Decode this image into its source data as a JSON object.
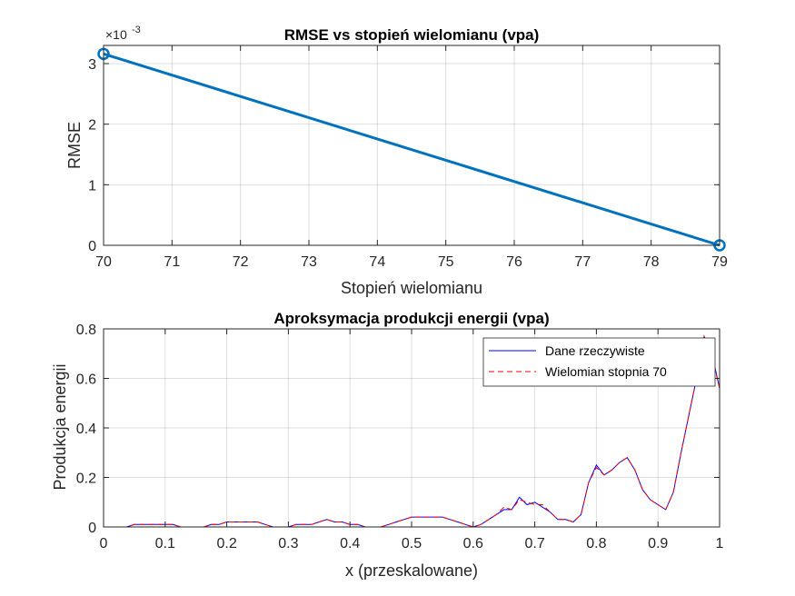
{
  "chart_data": [
    {
      "type": "line",
      "title": "RMSE vs stopień wielomianu (vpa)",
      "xlabel": "Stopień wielomianu",
      "ylabel": "RMSE",
      "y_exponent": "-3",
      "xlim": [
        70,
        79
      ],
      "ylim": [
        0,
        0.0033
      ],
      "xticks": [
        70,
        71,
        72,
        73,
        74,
        75,
        76,
        77,
        78,
        79
      ],
      "yticks": [
        0,
        0.001,
        0.002,
        0.003
      ],
      "ytick_labels": [
        "0",
        "1",
        "2",
        "3"
      ],
      "grid": true,
      "series": [
        {
          "x": [
            70,
            79
          ],
          "y": [
            0.00316,
            0.0
          ],
          "marker": "o",
          "color": "#0072BD"
        }
      ]
    },
    {
      "type": "line",
      "title": "Aproksymacja produkcji energii (vpa)",
      "xlabel": "x (przeskalowane)",
      "ylabel": "Produkcja energii",
      "xlim": [
        0,
        1
      ],
      "ylim": [
        0,
        0.8
      ],
      "xticks": [
        0,
        0.1,
        0.2,
        0.3,
        0.4,
        0.5,
        0.6,
        0.7,
        0.8,
        0.9,
        1
      ],
      "xtick_labels": [
        "0",
        "0.1",
        "0.2",
        "0.3",
        "0.4",
        "0.5",
        "0.6",
        "0.7",
        "0.8",
        "0.9",
        "1"
      ],
      "yticks": [
        0,
        0.2,
        0.4,
        0.6,
        0.8
      ],
      "ytick_labels": [
        "0",
        "0.2",
        "0.4",
        "0.6",
        "0.8"
      ],
      "grid": true,
      "legend_position": "top-right",
      "x": [
        0,
        0.0125,
        0.025,
        0.0375,
        0.05,
        0.0625,
        0.075,
        0.0875,
        0.1,
        0.1125,
        0.125,
        0.1375,
        0.15,
        0.1625,
        0.175,
        0.1875,
        0.2,
        0.2125,
        0.225,
        0.2375,
        0.25,
        0.2625,
        0.275,
        0.2875,
        0.3,
        0.3125,
        0.325,
        0.3375,
        0.35,
        0.3625,
        0.375,
        0.3875,
        0.4,
        0.4125,
        0.425,
        0.4375,
        0.45,
        0.4625,
        0.475,
        0.4875,
        0.5,
        0.5125,
        0.525,
        0.5375,
        0.55,
        0.5625,
        0.575,
        0.5875,
        0.6,
        0.6125,
        0.625,
        0.6375,
        0.65,
        0.6625,
        0.675,
        0.6875,
        0.7,
        0.7125,
        0.725,
        0.7375,
        0.75,
        0.7625,
        0.775,
        0.7875,
        0.8,
        0.8125,
        0.825,
        0.8375,
        0.85,
        0.8625,
        0.875,
        0.8875,
        0.9,
        0.9125,
        0.925,
        0.9375,
        0.95,
        0.9625,
        0.975,
        0.9875,
        1.0
      ],
      "series": [
        {
          "name": "Dane rzeczywiste",
          "color": "#0000FF",
          "dash": "solid",
          "values": [
            0.0,
            0.0,
            0.0,
            0.0,
            0.01,
            0.01,
            0.01,
            0.01,
            0.01,
            0.01,
            0.0,
            0.0,
            0.0,
            0.0,
            0.01,
            0.01,
            0.02,
            0.02,
            0.02,
            0.02,
            0.02,
            0.01,
            0.0,
            0.0,
            0.0,
            0.01,
            0.01,
            0.01,
            0.02,
            0.03,
            0.02,
            0.02,
            0.01,
            0.01,
            0.0,
            0.0,
            0.0,
            0.01,
            0.02,
            0.03,
            0.04,
            0.04,
            0.04,
            0.04,
            0.04,
            0.03,
            0.02,
            0.01,
            0.0,
            0.01,
            0.03,
            0.05,
            0.07,
            0.07,
            0.12,
            0.09,
            0.1,
            0.08,
            0.06,
            0.03,
            0.03,
            0.02,
            0.05,
            0.18,
            0.25,
            0.21,
            0.23,
            0.26,
            0.28,
            0.23,
            0.15,
            0.11,
            0.09,
            0.07,
            0.14,
            0.3,
            0.45,
            0.6,
            0.77,
            0.7,
            0.56
          ]
        },
        {
          "name": "Wielomian stopnia 70",
          "color": "#FF0000",
          "dash": "dashed",
          "values": [
            0.0,
            0.0,
            0.0,
            0.0,
            0.01,
            0.01,
            0.01,
            0.01,
            0.01,
            0.01,
            0.0,
            0.0,
            0.0,
            0.0,
            0.01,
            0.01,
            0.02,
            0.02,
            0.02,
            0.02,
            0.02,
            0.01,
            0.0,
            0.0,
            0.0,
            0.01,
            0.01,
            0.01,
            0.02,
            0.03,
            0.02,
            0.02,
            0.01,
            0.01,
            0.0,
            0.0,
            0.0,
            0.01,
            0.02,
            0.03,
            0.04,
            0.04,
            0.04,
            0.04,
            0.04,
            0.03,
            0.02,
            0.01,
            0.0,
            0.01,
            0.03,
            0.05,
            0.08,
            0.07,
            0.11,
            0.1,
            0.09,
            0.09,
            0.06,
            0.03,
            0.03,
            0.02,
            0.05,
            0.18,
            0.24,
            0.21,
            0.23,
            0.26,
            0.28,
            0.23,
            0.15,
            0.11,
            0.09,
            0.07,
            0.14,
            0.3,
            0.45,
            0.6,
            0.77,
            0.69,
            0.56
          ]
        }
      ]
    }
  ]
}
